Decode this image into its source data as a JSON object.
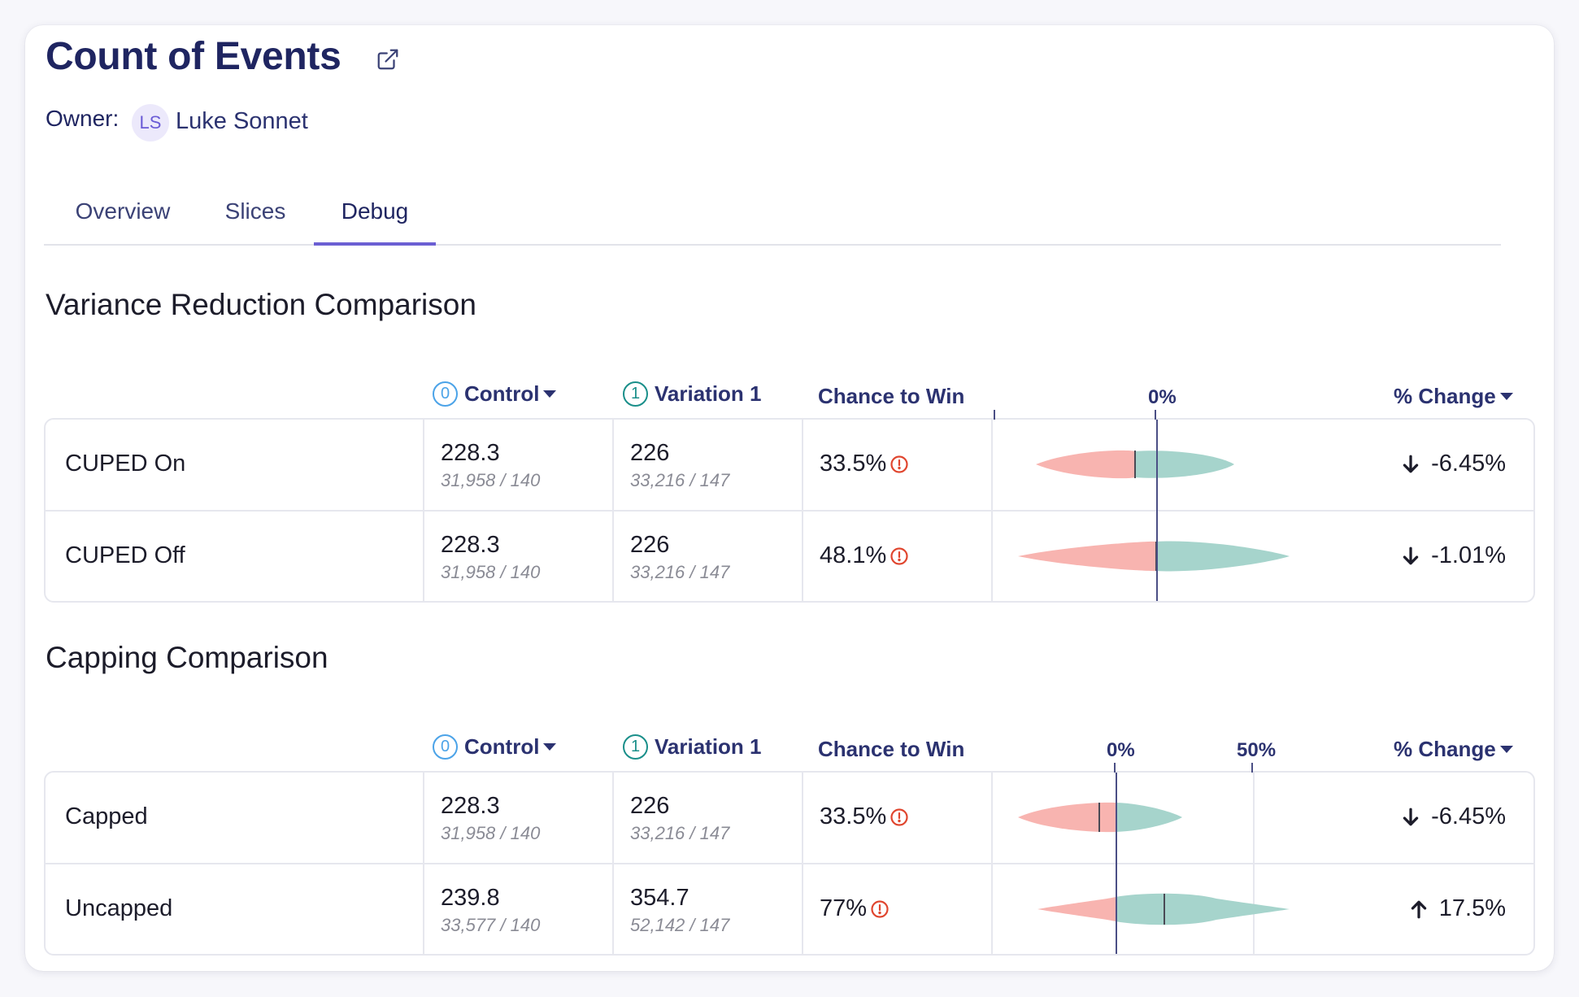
{
  "header": {
    "title": "Count of Events",
    "owner_label": "Owner:",
    "owner_initials": "LS",
    "owner_name": "Luke Sonnet"
  },
  "tabs": [
    {
      "label": "Overview",
      "active": false
    },
    {
      "label": "Slices",
      "active": false
    },
    {
      "label": "Debug",
      "active": true
    }
  ],
  "colors": {
    "accent": "#6b5fd3",
    "control_badge": "#4ba3e8",
    "variation_badge": "#1a8f8a",
    "negative_violin": "#f8b4b0",
    "positive_violin": "#a6d4cc",
    "warning": "#e0462f"
  },
  "sections": [
    {
      "title": "Variance Reduction Comparison",
      "columns": {
        "control_badge": "0",
        "control": "Control",
        "variation_badge": "1",
        "variation": "Variation 1",
        "chance": "Chance to Win",
        "axis_ticks": [
          "0%"
        ],
        "pct_change": "% Change"
      },
      "rows": [
        {
          "label": "CUPED On",
          "control_value": "228.3",
          "control_sub": "31,958 / 140",
          "variation_value": "226",
          "variation_sub": "33,216 / 147",
          "chance": "33.5%",
          "change": "-6.45%",
          "direction": "down"
        },
        {
          "label": "CUPED Off",
          "control_value": "228.3",
          "control_sub": "31,958 / 140",
          "variation_value": "226",
          "variation_sub": "33,216 / 147",
          "chance": "48.1%",
          "change": "-1.01%",
          "direction": "down"
        }
      ]
    },
    {
      "title": "Capping Comparison",
      "columns": {
        "control_badge": "0",
        "control": "Control",
        "variation_badge": "1",
        "variation": "Variation 1",
        "chance": "Chance to Win",
        "axis_ticks": [
          "0%",
          "50%"
        ],
        "pct_change": "% Change"
      },
      "rows": [
        {
          "label": "Capped",
          "control_value": "228.3",
          "control_sub": "31,958 / 140",
          "variation_value": "226",
          "variation_sub": "33,216 / 147",
          "chance": "33.5%",
          "change": "-6.45%",
          "direction": "down"
        },
        {
          "label": "Uncapped",
          "control_value": "239.8",
          "control_sub": "33,577 / 140",
          "variation_value": "354.7",
          "variation_sub": "52,142 / 147",
          "chance": "77%",
          "change": "17.5%",
          "direction": "up"
        }
      ]
    }
  ]
}
